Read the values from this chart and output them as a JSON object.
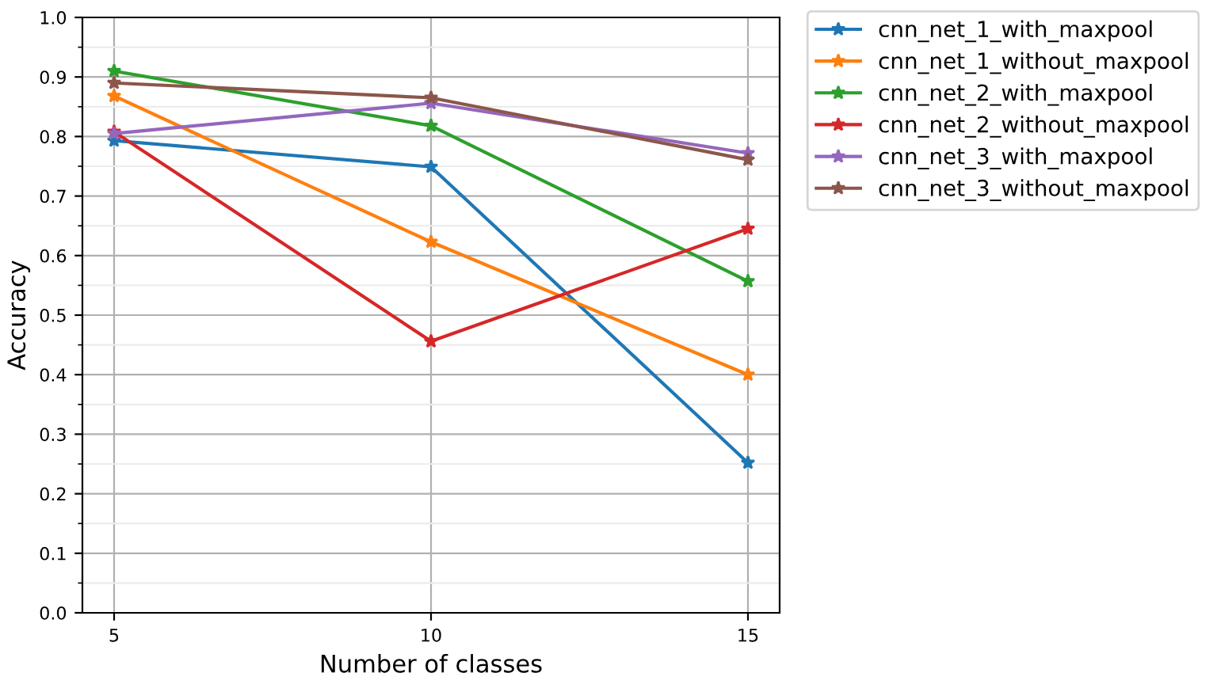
{
  "chart_data": {
    "type": "line",
    "xlabel": "Number of classes",
    "ylabel": "Accuracy",
    "x": [
      5,
      10,
      15
    ],
    "series": [
      {
        "name": "cnn_net_1_with_maxpool",
        "color": "#1f77b4",
        "values": [
          0.793,
          0.749,
          0.252
        ]
      },
      {
        "name": "cnn_net_1_without_maxpool",
        "color": "#ff7f0e",
        "values": [
          0.868,
          0.623,
          0.4
        ]
      },
      {
        "name": "cnn_net_2_with_maxpool",
        "color": "#2ca02c",
        "values": [
          0.91,
          0.818,
          0.557
        ]
      },
      {
        "name": "cnn_net_2_without_maxpool",
        "color": "#d62728",
        "values": [
          0.808,
          0.456,
          0.645
        ]
      },
      {
        "name": "cnn_net_3_with_maxpool",
        "color": "#9467bd",
        "values": [
          0.805,
          0.856,
          0.772
        ]
      },
      {
        "name": "cnn_net_3_without_maxpool",
        "color": "#8c564b",
        "values": [
          0.89,
          0.865,
          0.761
        ]
      }
    ],
    "xlim": [
      4.5,
      15.5
    ],
    "xticks": [
      5,
      10,
      15
    ],
    "ylim": [
      0.0,
      1.0
    ],
    "yticks": [
      {
        "value": 0.0,
        "label": "0.0"
      },
      {
        "value": 0.05,
        "label": null
      },
      {
        "value": 0.1,
        "label": "0.1"
      },
      {
        "value": 0.15,
        "label": null
      },
      {
        "value": 0.2,
        "label": "0.2"
      },
      {
        "value": 0.25,
        "label": null
      },
      {
        "value": 0.3,
        "label": "0.3"
      },
      {
        "value": 0.35,
        "label": null
      },
      {
        "value": 0.4,
        "label": "0.4"
      },
      {
        "value": 0.45,
        "label": null
      },
      {
        "value": 0.5,
        "label": "0.5"
      },
      {
        "value": 0.55,
        "label": null
      },
      {
        "value": 0.6,
        "label": "0.6"
      },
      {
        "value": 0.65,
        "label": null
      },
      {
        "value": 0.7,
        "label": "0.7"
      },
      {
        "value": 0.75,
        "label": null
      },
      {
        "value": 0.8,
        "label": "0.8"
      },
      {
        "value": 0.85,
        "label": null
      },
      {
        "value": 0.9,
        "label": "0.9"
      },
      {
        "value": 0.95,
        "label": null
      },
      {
        "value": 1.0,
        "label": "1.0"
      }
    ],
    "grid": true,
    "legend": "top right",
    "marker": "star",
    "line_style": "solid"
  }
}
